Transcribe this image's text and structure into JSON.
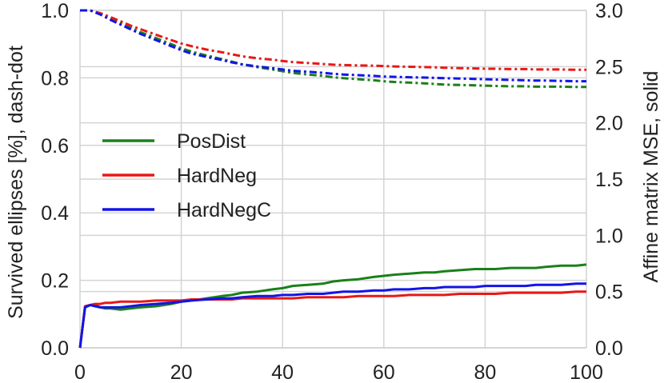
{
  "chart_data": {
    "type": "line",
    "x": [
      0,
      1,
      2,
      3,
      4,
      5,
      6,
      8,
      10,
      12,
      15,
      18,
      20,
      22,
      25,
      28,
      30,
      32,
      35,
      38,
      40,
      42,
      45,
      48,
      50,
      52,
      55,
      58,
      60,
      62,
      65,
      68,
      70,
      72,
      75,
      78,
      80,
      82,
      85,
      88,
      90,
      92,
      95,
      98,
      100
    ],
    "xlim": [
      0,
      100
    ],
    "xticks": [
      "0",
      "20",
      "40",
      "60",
      "80",
      "100"
    ],
    "left_axis": {
      "label": "Survived ellipses [%], dash-dot",
      "ylim": [
        0,
        1
      ],
      "ticks": [
        "0.0",
        "0.2",
        "0.4",
        "0.6",
        "0.8",
        "1.0"
      ]
    },
    "right_axis": {
      "label": "Affine matrix MSE, solid",
      "ylim": [
        0,
        3
      ],
      "ticks": [
        "0.0",
        "0.5",
        "1.0",
        "1.5",
        "2.0",
        "2.5",
        "3.0"
      ]
    },
    "legend_position": "center-left",
    "grid": true,
    "series": [
      {
        "name": "PosDist",
        "color": "#1a801a",
        "survived": [
          1.0,
          1.0,
          1.0,
          0.995,
          0.99,
          0.982,
          0.975,
          0.962,
          0.948,
          0.935,
          0.918,
          0.9,
          0.888,
          0.878,
          0.866,
          0.856,
          0.848,
          0.84,
          0.832,
          0.825,
          0.82,
          0.815,
          0.81,
          0.806,
          0.802,
          0.799,
          0.796,
          0.793,
          0.79,
          0.788,
          0.786,
          0.784,
          0.782,
          0.78,
          0.779,
          0.778,
          0.777,
          0.776,
          0.775,
          0.775,
          0.774,
          0.774,
          0.774,
          0.773,
          0.773
        ],
        "mse": [
          0.0,
          0.36,
          0.38,
          0.38,
          0.36,
          0.35,
          0.35,
          0.34,
          0.35,
          0.36,
          0.37,
          0.39,
          0.41,
          0.42,
          0.44,
          0.46,
          0.47,
          0.49,
          0.5,
          0.52,
          0.53,
          0.55,
          0.56,
          0.57,
          0.59,
          0.6,
          0.61,
          0.63,
          0.64,
          0.65,
          0.66,
          0.67,
          0.67,
          0.68,
          0.69,
          0.7,
          0.7,
          0.7,
          0.71,
          0.71,
          0.71,
          0.72,
          0.73,
          0.73,
          0.74
        ]
      },
      {
        "name": "HardNeg",
        "color": "#e81818",
        "survived": [
          1.0,
          1.0,
          1.0,
          0.996,
          0.992,
          0.986,
          0.98,
          0.968,
          0.955,
          0.944,
          0.928,
          0.912,
          0.902,
          0.894,
          0.884,
          0.876,
          0.87,
          0.864,
          0.858,
          0.854,
          0.85,
          0.847,
          0.844,
          0.841,
          0.839,
          0.838,
          0.837,
          0.836,
          0.835,
          0.834,
          0.833,
          0.832,
          0.831,
          0.83,
          0.829,
          0.828,
          0.827,
          0.827,
          0.826,
          0.826,
          0.825,
          0.825,
          0.825,
          0.824,
          0.824
        ],
        "mse": [
          0.0,
          0.37,
          0.38,
          0.39,
          0.39,
          0.4,
          0.4,
          0.41,
          0.41,
          0.41,
          0.42,
          0.42,
          0.42,
          0.43,
          0.43,
          0.43,
          0.43,
          0.44,
          0.44,
          0.44,
          0.44,
          0.44,
          0.45,
          0.45,
          0.45,
          0.45,
          0.46,
          0.46,
          0.46,
          0.46,
          0.47,
          0.47,
          0.47,
          0.47,
          0.48,
          0.48,
          0.48,
          0.48,
          0.49,
          0.49,
          0.49,
          0.49,
          0.49,
          0.5,
          0.5
        ]
      },
      {
        "name": "HardNegC",
        "color": "#1414e6",
        "survived": [
          1.0,
          1.0,
          1.0,
          0.994,
          0.988,
          0.98,
          0.972,
          0.958,
          0.944,
          0.93,
          0.912,
          0.894,
          0.882,
          0.872,
          0.862,
          0.853,
          0.846,
          0.84,
          0.834,
          0.829,
          0.825,
          0.821,
          0.818,
          0.815,
          0.812,
          0.81,
          0.808,
          0.806,
          0.804,
          0.803,
          0.802,
          0.801,
          0.8,
          0.799,
          0.798,
          0.797,
          0.796,
          0.795,
          0.794,
          0.793,
          0.792,
          0.792,
          0.791,
          0.79,
          0.79
        ],
        "mse": [
          0.0,
          0.36,
          0.38,
          0.37,
          0.36,
          0.36,
          0.36,
          0.36,
          0.37,
          0.38,
          0.39,
          0.4,
          0.41,
          0.42,
          0.43,
          0.44,
          0.44,
          0.45,
          0.46,
          0.46,
          0.47,
          0.47,
          0.48,
          0.48,
          0.49,
          0.5,
          0.5,
          0.51,
          0.51,
          0.52,
          0.52,
          0.53,
          0.53,
          0.54,
          0.54,
          0.54,
          0.55,
          0.55,
          0.55,
          0.55,
          0.56,
          0.56,
          0.56,
          0.57,
          0.57
        ]
      }
    ]
  }
}
